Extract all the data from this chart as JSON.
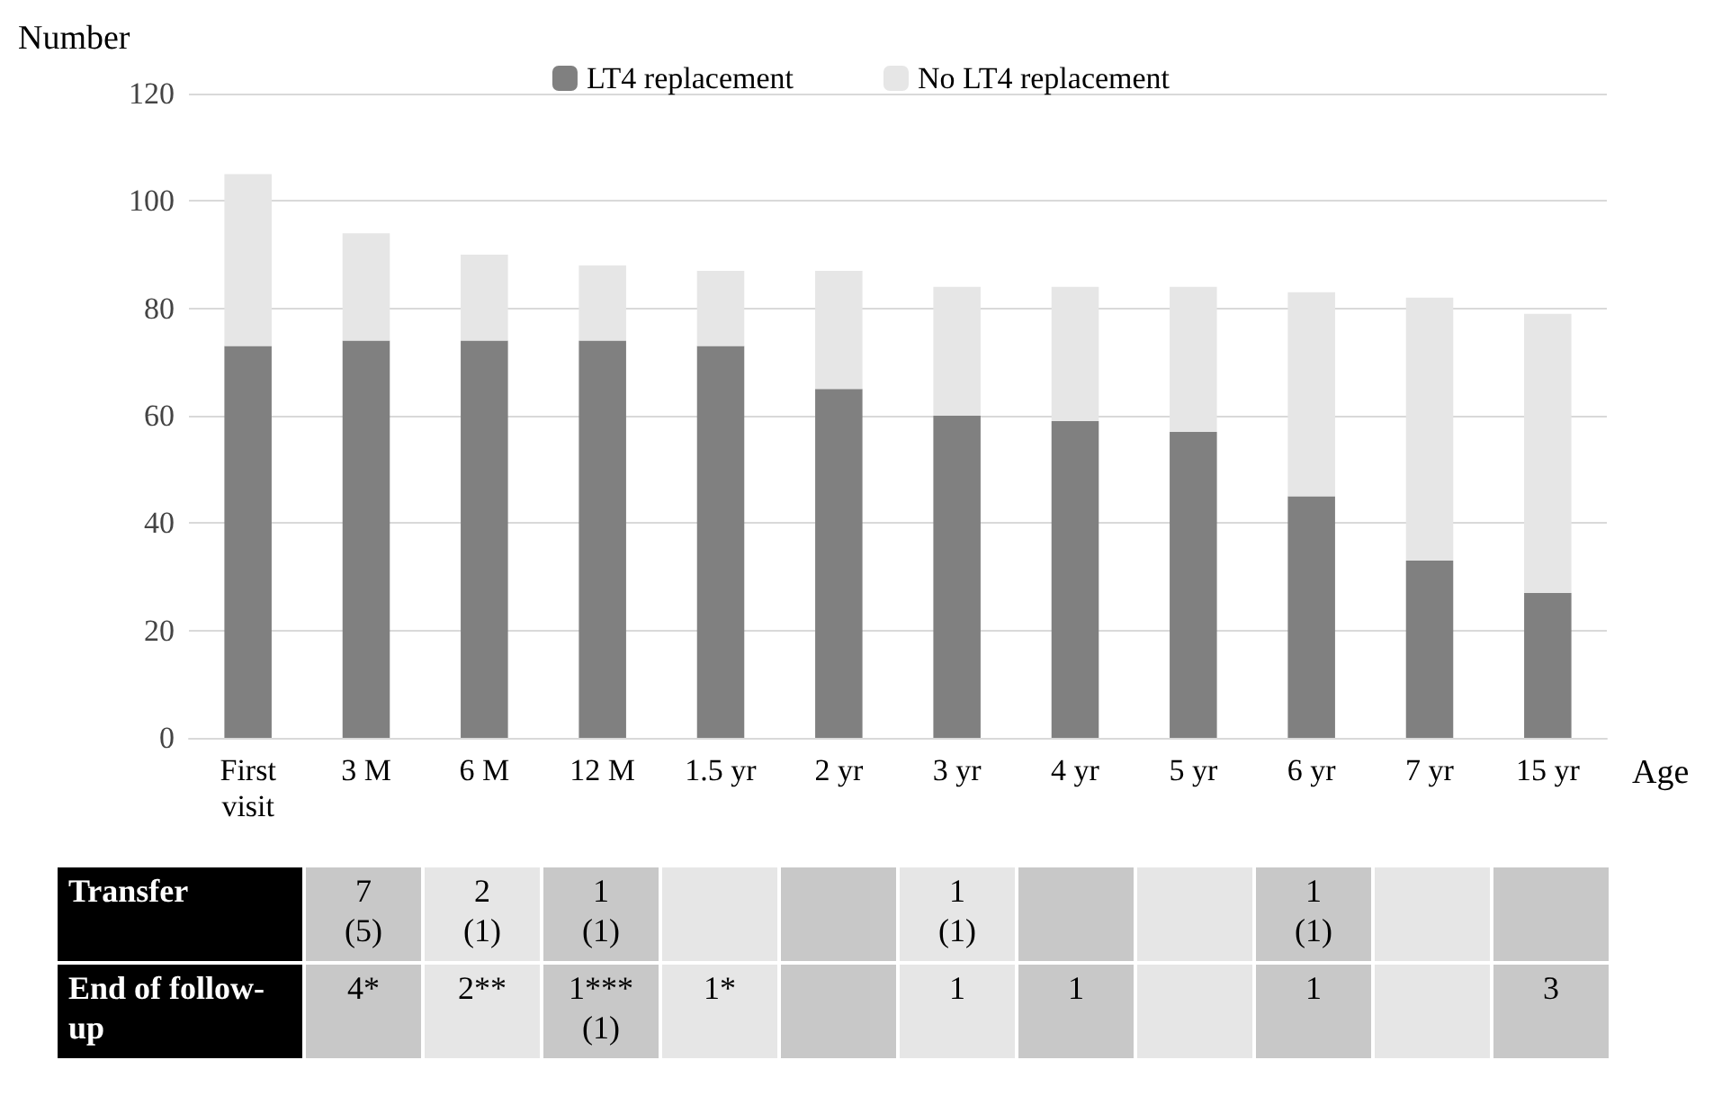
{
  "chart_data": [
    {
      "type": "bar",
      "ylabel": "Number",
      "xlabel": "Age",
      "categories": [
        "First\nvisit",
        "3 M",
        "6 M",
        "12 M",
        "1.5 yr",
        "2 yr",
        "3 yr",
        "4 yr",
        "5 yr",
        "6 yr",
        "7 yr",
        "15 yr"
      ],
      "series": [
        {
          "name": "LT4 replacement",
          "color": "#808080",
          "values": [
            73,
            74,
            74,
            74,
            73,
            65,
            60,
            59,
            57,
            45,
            33,
            27
          ]
        },
        {
          "name": "No LT4 replacement",
          "color": "#e6e6e6",
          "values": [
            32,
            20,
            16,
            14,
            14,
            22,
            24,
            25,
            27,
            38,
            49,
            52
          ]
        }
      ],
      "stacked": true,
      "ylim": [
        0,
        120
      ],
      "yticks": [
        0,
        20,
        40,
        60,
        80,
        100,
        120
      ],
      "grid": "y",
      "legend": "top"
    },
    {
      "type": "other",
      "y_categories": [
        "Transfer",
        "End of follow-up"
      ],
      "cell_labels": [
        [
          "7\n(5)",
          "2\n(1)",
          "1\n(1)",
          null,
          null,
          "1\n(1)",
          null,
          null,
          "1\n(1)",
          null,
          null
        ],
        [
          "4*",
          "2**",
          "1***\n(1)",
          "1*",
          null,
          "1",
          "1",
          null,
          "1",
          null,
          "3"
        ]
      ],
      "colors": [
        "#c8c8c8",
        "#e6e6e6",
        "#c8c8c8",
        "#e6e6e6",
        "#c8c8c8",
        "#e6e6e6",
        "#c8c8c8",
        "#e6e6e6",
        "#c8c8c8",
        "#e6e6e6",
        "#c8c8c8"
      ]
    }
  ]
}
